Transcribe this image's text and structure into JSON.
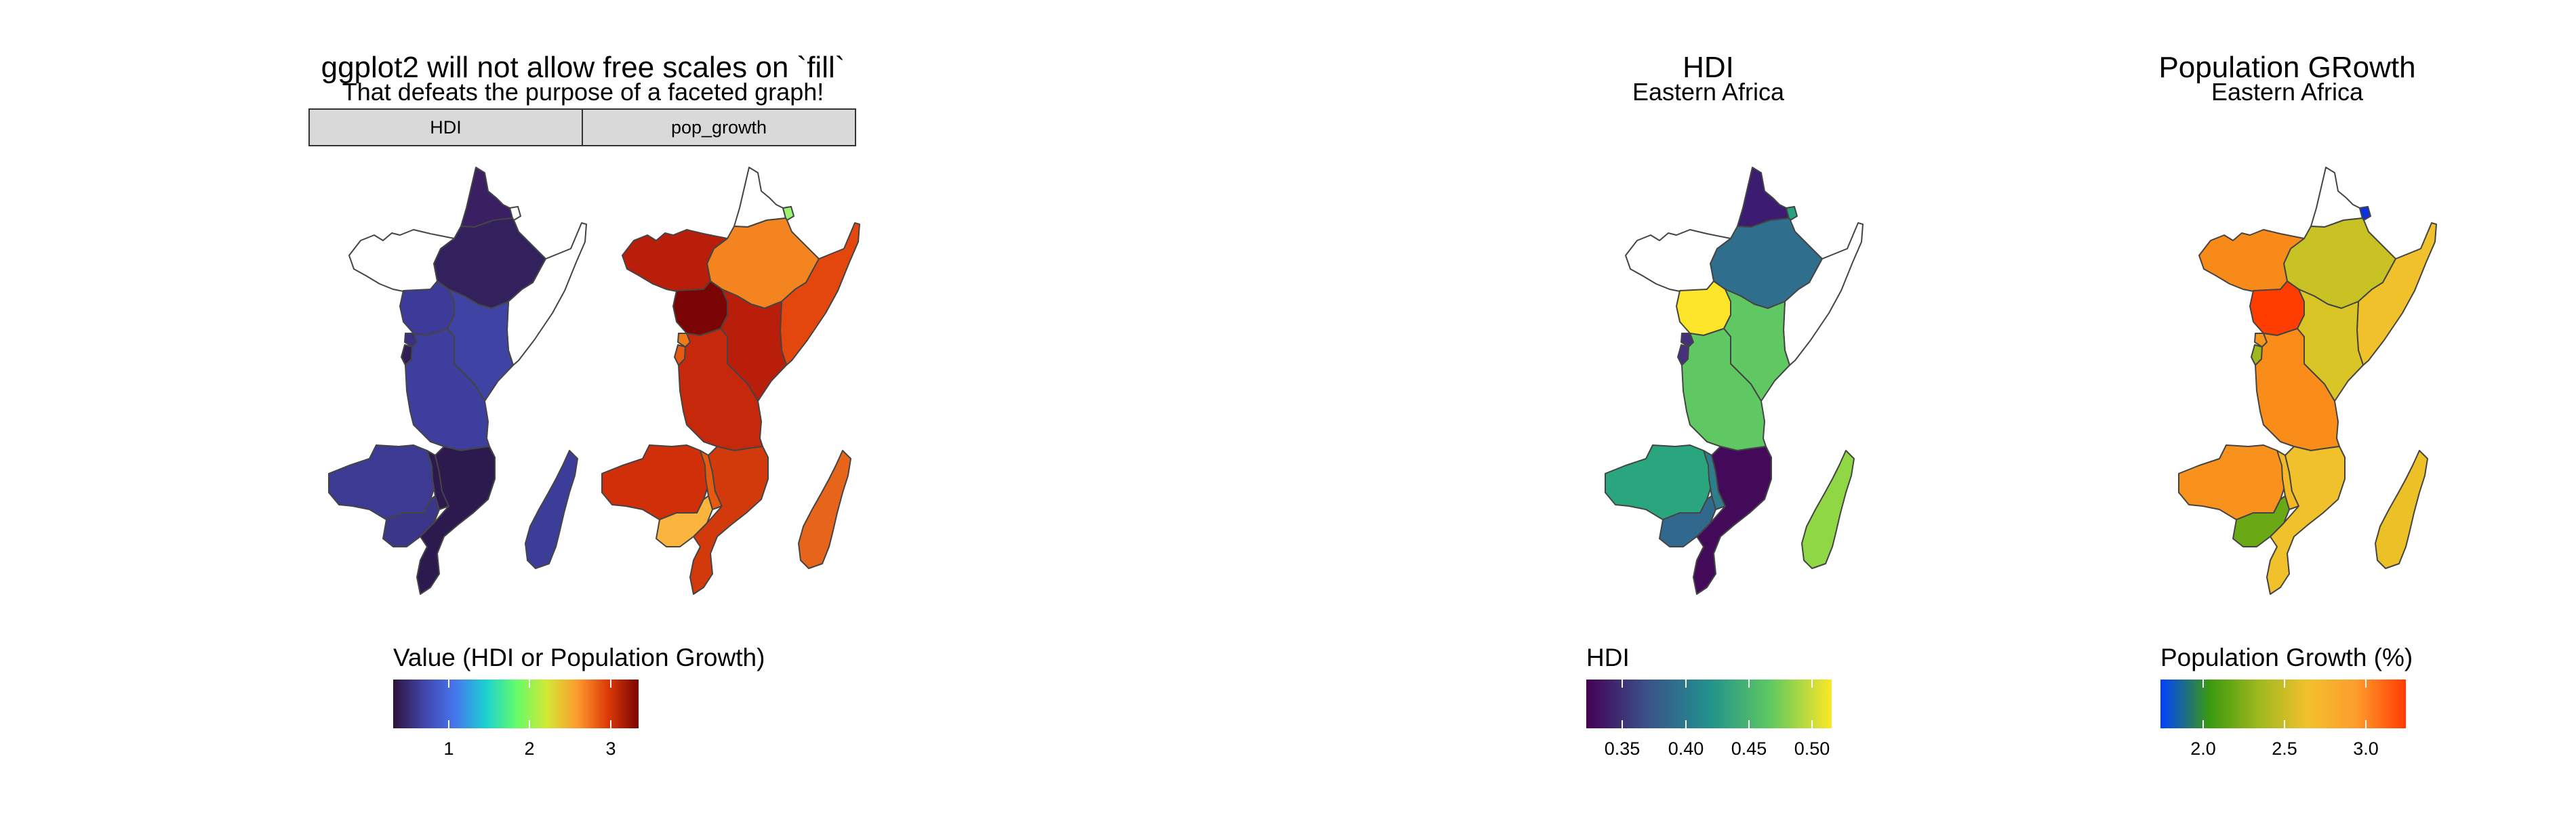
{
  "panel_left": {
    "title": "ggplot2 will not allow free scales on `fill`",
    "subtitle": "That defeats the purpose of a faceted graph!",
    "facets": [
      "HDI",
      "pop_growth"
    ],
    "legend": {
      "title": "Value (HDI or Population Growth)",
      "ticks": [
        "1",
        "2",
        "3"
      ],
      "colors": [
        "#30123b",
        "#4145ab",
        "#4675ed",
        "#1bcfd4",
        "#62fc6b",
        "#d2e935",
        "#fe9b2d",
        "#db3a07",
        "#7a0403"
      ]
    }
  },
  "panel_hdi": {
    "title": "HDI",
    "subtitle": "Eastern Africa",
    "legend": {
      "title": "HDI",
      "ticks": [
        "0.35",
        "0.40",
        "0.45",
        "0.50"
      ],
      "colors": [
        "#440154",
        "#3b528b",
        "#21918c",
        "#5ec962",
        "#fde725"
      ]
    }
  },
  "panel_pop": {
    "title": "Population GRowth",
    "subtitle": "Eastern Africa",
    "legend": {
      "title": "Population Growth (%)",
      "ticks": [
        "2.0",
        "2.5",
        "3.0"
      ],
      "colors": [
        "#0040ff",
        "#3a9a10",
        "#9fb81e",
        "#f2c12c",
        "#fe9b2d",
        "#ff3b00"
      ]
    }
  }
}
